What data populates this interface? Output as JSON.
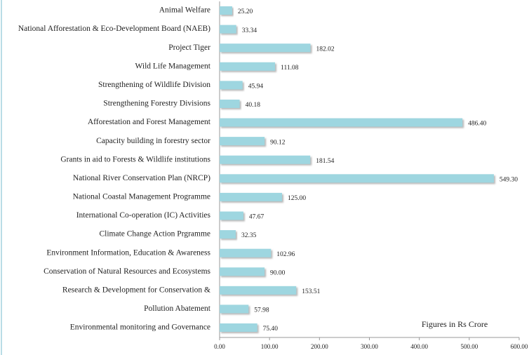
{
  "chart_data": {
    "type": "hbar",
    "annotation": "Figures in  Rs Crore",
    "color": "#9ed6e0",
    "categories": [
      "Animal Welfare",
      "National Afforestation & Eco-Development Board (NAEB)",
      "Project Tiger",
      "Wild Life Management",
      "Strengthening of Wildlife Division",
      "Strengthening Forestry Divisions",
      "Afforestation and Forest Management",
      "Capacity building in forestry sector",
      "Grants in aid to Forests & Wildlife institutions",
      "National River Conservation Plan (NRCP)",
      "National Coastal Management Programme",
      "International Co-operation (IC) Activities",
      "Climate Change Action Prgramme",
      "Environment Information, Education & Awareness",
      "Conservation of Natural Resources and Ecosystems",
      "Research & Development for Conservation &",
      "Pollution Abatement",
      "Environmental monitoring and Governance"
    ],
    "values": [
      25.2,
      33.34,
      182.02,
      111.08,
      45.94,
      40.18,
      486.4,
      90.12,
      181.54,
      549.3,
      125,
      47.67,
      32.35,
      102.96,
      90,
      153.51,
      57.98,
      75.4
    ],
    "value_labels": [
      "25.20",
      "33.34",
      "182.02",
      "111.08",
      "45.94",
      "40.18",
      "486.40",
      "90.12",
      "181.54",
      "549.30",
      "125.00",
      "47.67",
      "32.35",
      "102.96",
      "90.00",
      "153.51",
      "57.98",
      "75.40"
    ],
    "xlim": [
      0,
      600
    ],
    "xticks": [
      {
        "value": 0,
        "label": "0.00"
      },
      {
        "value": 100,
        "label": "100.00"
      },
      {
        "value": 200,
        "label": "200.00"
      },
      {
        "value": 300,
        "label": "300.00"
      },
      {
        "value": 400,
        "label": "400.00"
      },
      {
        "value": 500,
        "label": "500.00"
      },
      {
        "value": 600,
        "label": "600.00"
      }
    ]
  }
}
